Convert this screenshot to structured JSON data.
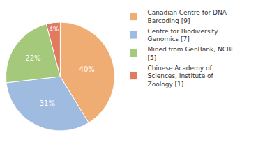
{
  "chart_data": {
    "type": "pie",
    "categories": [
      "Canadian Centre for DNA Barcoding [9]",
      "Centre for Biodiversity Genomics [7]",
      "Mined from GenBank, NCBI [5]",
      "Chinese Academy of Sciences, Institute of Zoology [1]"
    ],
    "values": [
      40,
      31,
      22,
      4
    ],
    "value_labels": [
      "40%",
      "31%",
      "22%",
      "4%"
    ],
    "colors": [
      "#f0ad73",
      "#9fbbe0",
      "#a4c97a",
      "#e07b5f"
    ],
    "data_labels": true,
    "legend": "right"
  }
}
